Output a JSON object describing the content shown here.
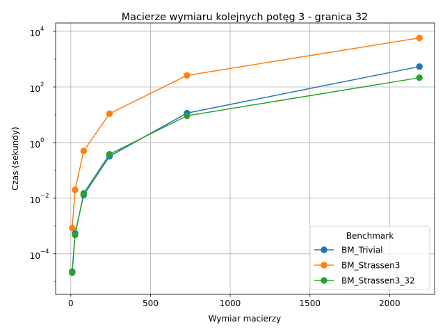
{
  "chart_data": {
    "type": "line",
    "title": "Macierze wymiaru kolejnych potęg 3 - granica 32",
    "xlabel": "Wymiar macierzy",
    "ylabel": "Czas (sekundy)",
    "xlim": [
      -95,
      2282
    ],
    "ylim": [
      3.5e-06,
      20000
    ],
    "yscale": "log",
    "x_ticks": [
      0,
      500,
      1000,
      1500,
      2000
    ],
    "x_tick_labels": [
      "0",
      "500",
      "1000",
      "1500",
      "2000"
    ],
    "y_ticks": [
      0.0001,
      0.01,
      1,
      100,
      10000
    ],
    "y_tick_labels": [
      "10",
      "10",
      "10",
      "10",
      "10"
    ],
    "y_tick_exponents": [
      "−4",
      "−2",
      "0",
      "2",
      "4"
    ],
    "grid": true,
    "legend": {
      "title": "Benchmark",
      "placement": "lower-right"
    },
    "series": [
      {
        "name": "BM_Trivial",
        "color": "#1f77b4",
        "x": [
          9,
          27,
          81,
          243,
          729,
          2187
        ],
        "y": [
          2.3e-05,
          0.00055,
          0.013,
          0.32,
          11.5,
          540
        ]
      },
      {
        "name": "BM_Strassen3",
        "color": "#ff7f0e",
        "x": [
          9,
          27,
          81,
          243,
          729,
          2187
        ],
        "y": [
          0.00085,
          0.02,
          0.5,
          11,
          260,
          5800
        ]
      },
      {
        "name": "BM_Strassen3_32",
        "color": "#2ca02c",
        "x": [
          9,
          27,
          81,
          243,
          729,
          2187
        ],
        "y": [
          2.1e-05,
          0.00048,
          0.015,
          0.38,
          9.2,
          215
        ]
      }
    ]
  }
}
